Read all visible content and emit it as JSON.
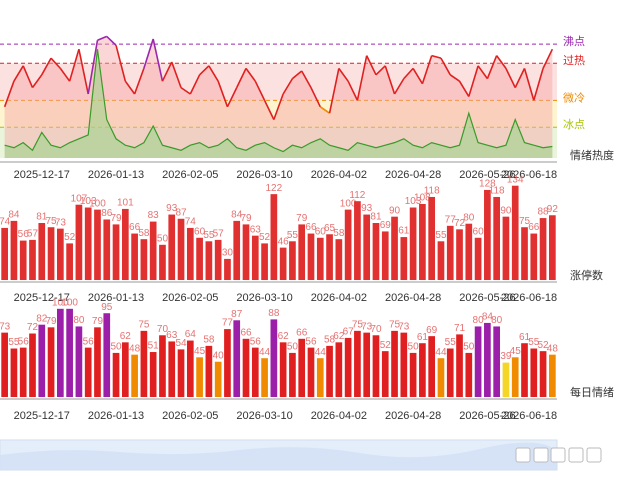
{
  "chart_data": [
    {
      "type": "line",
      "axis_label": "情绪热度",
      "categories": [
        null,
        null,
        null,
        null,
        "2025-12-17",
        null,
        null,
        null,
        null,
        null,
        null,
        null,
        "2026-01-13",
        null,
        null,
        null,
        null,
        null,
        null,
        null,
        "2026-02-05",
        null,
        null,
        null,
        null,
        null,
        null,
        null,
        "2026-03-10",
        null,
        null,
        null,
        null,
        null,
        null,
        null,
        "2026-04-02",
        null,
        null,
        null,
        null,
        null,
        null,
        null,
        "2026-04-28",
        null,
        null,
        null,
        null,
        null,
        null,
        null,
        "2026-05-26",
        null,
        null,
        null,
        null,
        null,
        null,
        "2026-06-18"
      ],
      "ylim": [
        0,
        100
      ],
      "thresholds": [
        {
          "name": "沸点",
          "value": 89,
          "color": "#9b27af"
        },
        {
          "name": "过热",
          "value": 74,
          "color": "#e02020"
        },
        {
          "name": "微冷",
          "value": 45,
          "color": "#f08a00"
        },
        {
          "name": "冰点",
          "value": 24,
          "color": "#a8c400"
        }
      ],
      "series": [
        {
          "name": "heat",
          "values": [
            40,
            60,
            72,
            55,
            65,
            78,
            70,
            60,
            85,
            50,
            92,
            95,
            88,
            60,
            50,
            70,
            93,
            60,
            75,
            55,
            50,
            65,
            72,
            60,
            40,
            55,
            70,
            60,
            45,
            30,
            50,
            62,
            68,
            55,
            40,
            35,
            70,
            60,
            45,
            80,
            65,
            72,
            50,
            62,
            70,
            58,
            80,
            78,
            65,
            60,
            48,
            72,
            62,
            80,
            70,
            55,
            70,
            45,
            70,
            85
          ]
        },
        {
          "name": "low",
          "color": "#3a9a2a",
          "values": [
            10,
            8,
            12,
            6,
            20,
            10,
            8,
            12,
            15,
            18,
            85,
            30,
            15,
            10,
            8,
            12,
            25,
            10,
            8,
            6,
            10,
            12,
            8,
            10,
            15,
            8,
            6,
            10,
            12,
            8,
            5,
            10,
            8,
            12,
            15,
            10,
            8,
            6,
            12,
            10,
            8,
            10,
            12,
            15,
            10,
            8,
            12,
            10,
            8,
            10,
            35,
            12,
            10,
            8,
            10,
            30,
            12,
            10,
            8,
            9
          ]
        }
      ]
    },
    {
      "type": "bar",
      "axis_label": "涨停数",
      "color": "#e03030",
      "label_color": "#e57373",
      "ylim": [
        0,
        135
      ],
      "values": [
        74,
        84,
        56,
        57,
        81,
        75,
        73,
        52,
        107,
        103,
        100,
        86,
        79,
        101,
        66,
        58,
        83,
        50,
        93,
        87,
        74,
        60,
        55,
        57,
        30,
        84,
        79,
        63,
        52,
        122,
        46,
        55,
        79,
        66,
        60,
        65,
        58,
        100,
        112,
        93,
        81,
        69,
        90,
        61,
        103,
        108,
        118,
        55,
        77,
        72,
        80,
        60,
        128,
        118,
        90,
        134,
        75,
        66,
        88,
        92
      ]
    },
    {
      "type": "bar",
      "axis_label": "每日情绪",
      "label_color": "#e57373",
      "ylim": [
        0,
        110
      ],
      "levels": [
        {
          "min": 80,
          "color": "#9b1fa8"
        },
        {
          "min": 50,
          "color": "#e02020"
        },
        {
          "min": 40,
          "color": "#f08a00"
        },
        {
          "min": 0,
          "color": "#f5d525"
        }
      ],
      "values": [
        73,
        55,
        56,
        72,
        82,
        79,
        100,
        100,
        80,
        56,
        79,
        95,
        50,
        62,
        48,
        75,
        51,
        70,
        63,
        54,
        64,
        45,
        58,
        40,
        77,
        87,
        66,
        56,
        44,
        88,
        62,
        50,
        66,
        56,
        44,
        58,
        62,
        67,
        75,
        73,
        70,
        52,
        75,
        73,
        50,
        61,
        69,
        44,
        55,
        71,
        50,
        80,
        84,
        80,
        39,
        45,
        61,
        55,
        52,
        48
      ]
    }
  ]
}
